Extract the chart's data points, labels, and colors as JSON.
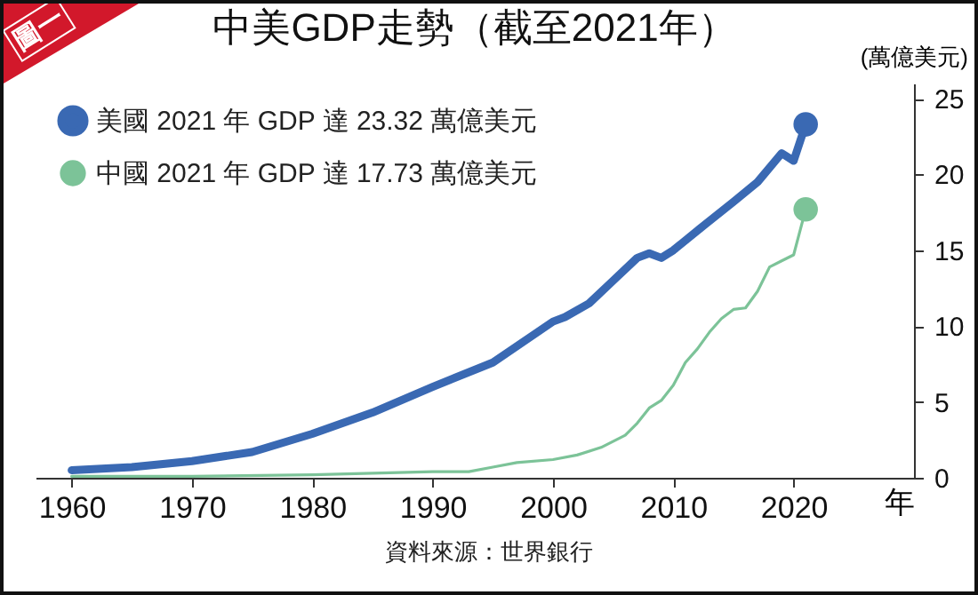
{
  "chart_data": {
    "type": "line",
    "title": "中美GDP走勢（截至2021年）",
    "ylabel": "(萬億美元)",
    "xlabel": "年",
    "annotations": [
      "圖一",
      "資料來源：世界銀行"
    ],
    "xlim": [
      1957,
      2030
    ],
    "xticks": [
      1960,
      1970,
      1980,
      1990,
      2000,
      2010,
      2020
    ],
    "ylim": [
      0,
      26
    ],
    "yticks": [
      0,
      5,
      10,
      15,
      20,
      25
    ],
    "grid": false,
    "legend": "top left",
    "series": [
      {
        "name": "美國 2021 年 GDP 達 23.32 萬億美元",
        "color": "#3a69b3",
        "x": [
          1960,
          1965,
          1970,
          1975,
          1980,
          1985,
          1990,
          1995,
          2000,
          2001,
          2003,
          2005,
          2007,
          2008,
          2009,
          2010,
          2012,
          2015,
          2017,
          2019,
          2020,
          2021
        ],
        "values": [
          0.5,
          0.7,
          1.1,
          1.7,
          2.9,
          4.3,
          6.0,
          7.6,
          10.3,
          10.6,
          11.5,
          13.0,
          14.5,
          14.8,
          14.5,
          15.0,
          16.3,
          18.2,
          19.5,
          21.4,
          20.9,
          23.3
        ]
      },
      {
        "name": "中國 2021 年 GDP 達 17.73 萬億美元",
        "color": "#7cc398",
        "x": [
          1960,
          1970,
          1980,
          1985,
          1990,
          1993,
          1995,
          1997,
          2000,
          2002,
          2004,
          2006,
          2007,
          2008,
          2009,
          2010,
          2011,
          2012,
          2013,
          2014,
          2015,
          2016,
          2017,
          2018,
          2019,
          2020,
          2021
        ],
        "values": [
          0.1,
          0.1,
          0.2,
          0.3,
          0.4,
          0.4,
          0.7,
          1.0,
          1.2,
          1.5,
          2.0,
          2.8,
          3.6,
          4.6,
          5.1,
          6.1,
          7.6,
          8.5,
          9.6,
          10.5,
          11.1,
          11.2,
          12.3,
          13.9,
          14.3,
          14.7,
          17.7
        ]
      },
      {
        "type": "scatter",
        "marker": "circle",
        "color": "#3a69b3",
        "x": [
          2021
        ],
        "values": [
          23.3
        ]
      },
      {
        "type": "scatter",
        "marker": "circle",
        "color": "#7cc398",
        "x": [
          2021
        ],
        "values": [
          17.7
        ]
      }
    ]
  }
}
